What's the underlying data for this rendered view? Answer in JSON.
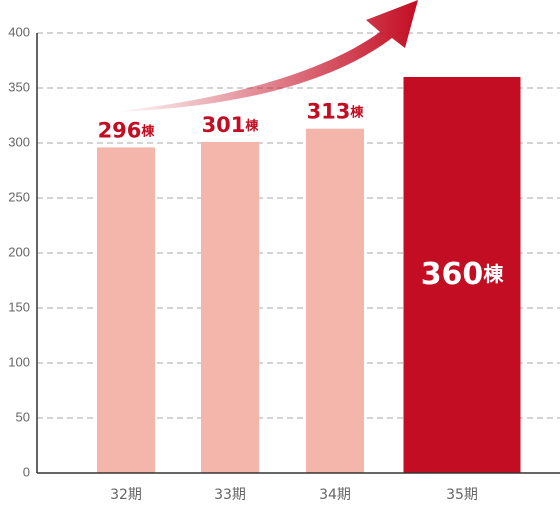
{
  "chart_data": {
    "type": "bar",
    "categories": [
      "32期",
      "33期",
      "34期",
      "35期"
    ],
    "values": [
      296,
      301,
      313,
      360
    ],
    "value_labels": [
      "296棟",
      "301棟",
      "313棟",
      "360棟"
    ],
    "colors": [
      "#f4b6aa",
      "#f4b6aa",
      "#f4b6aa",
      "#c30d23"
    ],
    "ylim": [
      0,
      400
    ],
    "yticks": [
      0,
      50,
      100,
      150,
      200,
      250,
      300,
      350,
      400
    ],
    "grid": true
  }
}
